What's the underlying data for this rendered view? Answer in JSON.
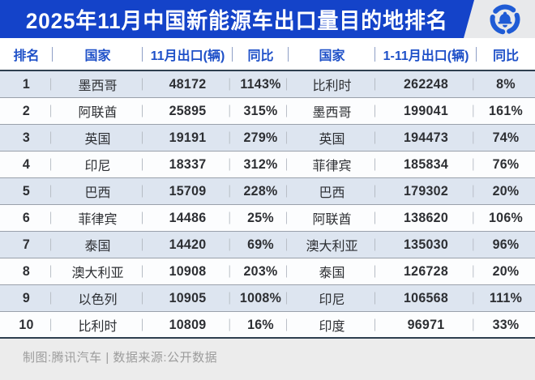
{
  "title": "2025年11月中国新能源车出口量目的地排名",
  "logo": {
    "icon": "tencent-news-logo",
    "color": "#1F5BD5"
  },
  "chart_data": {
    "type": "table",
    "title": "2025年11月中国新能源车出口量目的地排名",
    "columns": [
      "排名",
      "国家",
      "11月出口(辆)",
      "同比",
      "国家",
      "1-11月出口(辆)",
      "同比"
    ],
    "rows": [
      [
        "1",
        "墨西哥",
        "48172",
        "1143%",
        "比利时",
        "262248",
        "8%"
      ],
      [
        "2",
        "阿联酋",
        "25895",
        "315%",
        "墨西哥",
        "199041",
        "161%"
      ],
      [
        "3",
        "英国",
        "19191",
        "279%",
        "英国",
        "194473",
        "74%"
      ],
      [
        "4",
        "印尼",
        "18337",
        "312%",
        "菲律宾",
        "185834",
        "76%"
      ],
      [
        "5",
        "巴西",
        "15709",
        "228%",
        "巴西",
        "179302",
        "20%"
      ],
      [
        "6",
        "菲律宾",
        "14486",
        "25%",
        "阿联酋",
        "138620",
        "106%"
      ],
      [
        "7",
        "泰国",
        "14420",
        "69%",
        "澳大利亚",
        "135030",
        "96%"
      ],
      [
        "8",
        "澳大利亚",
        "10908",
        "203%",
        "泰国",
        "126728",
        "20%"
      ],
      [
        "9",
        "以色列",
        "10905",
        "1008%",
        "印尼",
        "106568",
        "111%"
      ],
      [
        "10",
        "比利时",
        "10809",
        "16%",
        "印度",
        "96971",
        "33%"
      ]
    ]
  },
  "footer": {
    "credit": "制图:腾讯汽车 | 数据来源:公开数据"
  },
  "colors": {
    "title_bar_blue": "#1443C9",
    "logo_blue": "#1F5BD5",
    "header_text_blue": "#1E50C8",
    "row_alt_bg": "#DDE5F0",
    "dark_rule": "#2E3F4F",
    "footer_bg": "#ECECEC"
  }
}
